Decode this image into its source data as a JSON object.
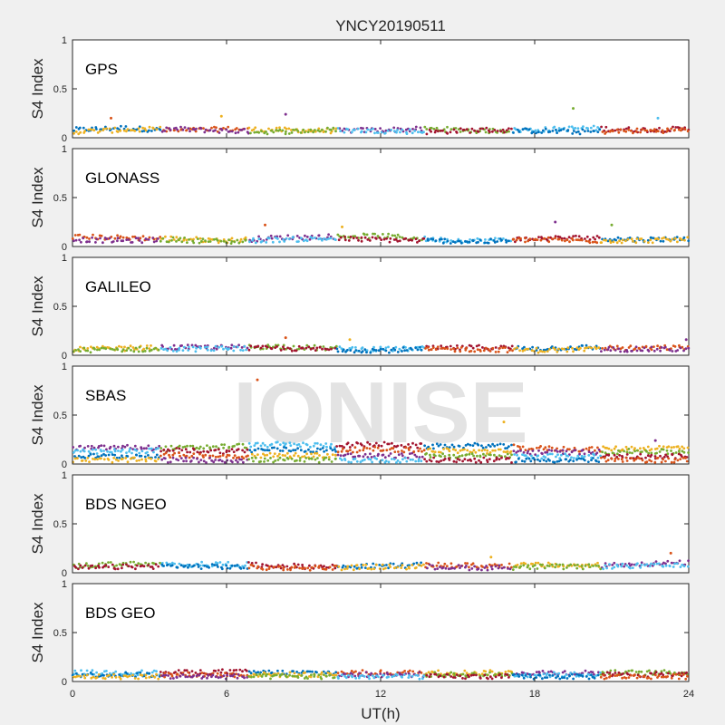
{
  "chart_data": {
    "type": "scatter",
    "title": "YNCY20190511",
    "xlabel": "UT(h)",
    "ylabel": "S4 Index",
    "xlim": [
      0,
      24
    ],
    "ylim": [
      0,
      1
    ],
    "xticks": [
      "0",
      "6",
      "12",
      "18",
      "24"
    ],
    "yticks": [
      "0",
      "0.5",
      "1"
    ],
    "grid": false,
    "watermark": "IONISE",
    "series_colors": [
      "#0072bd",
      "#d95319",
      "#edb120",
      "#7e2f8e",
      "#77ac30",
      "#4dbeee",
      "#a2142f"
    ],
    "panels": [
      {
        "label": "GPS",
        "series": [
          {
            "x": [
              0,
              2,
              4,
              6,
              8,
              10,
              12,
              14,
              16,
              18,
              20,
              22,
              24
            ],
            "y": [
              0.08,
              0.1,
              0.07,
              0.09,
              0.08,
              0.07,
              0.08,
              0.09,
              0.07,
              0.08,
              0.1,
              0.08,
              0.09
            ]
          },
          {
            "x": [
              0,
              2,
              4,
              6,
              8,
              10,
              12,
              14,
              16,
              18,
              20,
              22,
              24
            ],
            "y": [
              0.06,
              0.08,
              0.09,
              0.07,
              0.06,
              0.08,
              0.07,
              0.06,
              0.08,
              0.07,
              0.06,
              0.07,
              0.08
            ]
          }
        ],
        "outliers": [
          [
            1.5,
            0.2
          ],
          [
            5.8,
            0.22
          ],
          [
            8.3,
            0.24
          ],
          [
            19.5,
            0.3
          ],
          [
            22.8,
            0.2
          ]
        ]
      },
      {
        "label": "GLONASS",
        "series": [
          {
            "x": [
              0,
              2,
              4,
              6,
              8,
              10,
              12,
              14,
              16,
              18,
              20,
              22,
              24
            ],
            "y": [
              0.1,
              0.09,
              0.08,
              0.06,
              0.09,
              0.1,
              0.11,
              0.07,
              0.06,
              0.08,
              0.09,
              0.07,
              0.08
            ]
          },
          {
            "x": [
              0,
              2,
              4,
              6,
              8,
              10,
              12,
              14,
              16,
              18,
              20,
              22,
              24
            ],
            "y": [
              0.07,
              0.06,
              0.07,
              0.05,
              0.07,
              0.08,
              0.07,
              0.06,
              0.05,
              0.07,
              0.06,
              0.06,
              0.07
            ]
          }
        ],
        "outliers": [
          [
            7.5,
            0.22
          ],
          [
            10.5,
            0.2
          ],
          [
            18.8,
            0.25
          ],
          [
            21.0,
            0.22
          ]
        ]
      },
      {
        "label": "GALILEO",
        "series": [
          {
            "x": [
              0,
              2,
              4,
              6,
              8,
              10,
              12,
              14,
              16,
              18,
              20,
              22,
              24
            ],
            "y": [
              0.06,
              0.07,
              0.08,
              0.08,
              0.09,
              0.07,
              0.06,
              0.07,
              0.08,
              0.07,
              0.08,
              0.07,
              0.08
            ]
          },
          {
            "x": [
              0,
              2,
              4,
              6,
              8,
              10,
              12,
              14,
              16,
              18,
              20,
              22,
              24
            ],
            "y": [
              0.05,
              0.06,
              0.06,
              0.07,
              0.07,
              0.06,
              0.05,
              0.06,
              0.06,
              0.05,
              0.06,
              0.06,
              0.06
            ]
          }
        ],
        "outliers": [
          [
            8.3,
            0.18
          ],
          [
            10.8,
            0.16
          ],
          [
            23.9,
            0.16
          ]
        ]
      },
      {
        "label": "SBAS",
        "series": [
          {
            "x": [
              0,
              2,
              4,
              6,
              8,
              10,
              12,
              14,
              16,
              18,
              20,
              22,
              24
            ],
            "y": [
              0.16,
              0.17,
              0.16,
              0.18,
              0.2,
              0.19,
              0.2,
              0.18,
              0.19,
              0.16,
              0.15,
              0.16,
              0.17
            ]
          },
          {
            "x": [
              0,
              2,
              4,
              6,
              8,
              10,
              12,
              14,
              16,
              18,
              20,
              22,
              24
            ],
            "y": [
              0.12,
              0.13,
              0.14,
              0.13,
              0.15,
              0.14,
              0.15,
              0.14,
              0.13,
              0.12,
              0.12,
              0.13,
              0.12
            ]
          },
          {
            "x": [
              0,
              2,
              4,
              6,
              8,
              10,
              12,
              14,
              16,
              18,
              20,
              22,
              24
            ],
            "y": [
              0.08,
              0.08,
              0.09,
              0.08,
              0.09,
              0.09,
              0.08,
              0.09,
              0.08,
              0.08,
              0.08,
              0.08,
              0.08
            ]
          },
          {
            "x": [
              0,
              2,
              4,
              6,
              8,
              10,
              12,
              14,
              16,
              18,
              20,
              22,
              24
            ],
            "y": [
              0.04,
              0.04,
              0.04,
              0.04,
              0.04,
              0.04,
              0.04,
              0.04,
              0.04,
              0.04,
              0.04,
              0.04,
              0.04
            ]
          }
        ],
        "outliers": [
          [
            7.2,
            0.86
          ],
          [
            16.8,
            0.43
          ],
          [
            22.7,
            0.24
          ]
        ]
      },
      {
        "label": "BDS NGEO",
        "series": [
          {
            "x": [
              0,
              2,
              4,
              6,
              8,
              10,
              12,
              14,
              16,
              18,
              20,
              22,
              24
            ],
            "y": [
              0.07,
              0.09,
              0.08,
              0.09,
              0.07,
              0.06,
              0.07,
              0.08,
              0.07,
              0.08,
              0.07,
              0.09,
              0.1
            ]
          },
          {
            "x": [
              0,
              2,
              4,
              6,
              8,
              10,
              12,
              14,
              16,
              18,
              20,
              22,
              24
            ],
            "y": [
              0.05,
              0.06,
              0.07,
              0.06,
              0.05,
              0.05,
              0.06,
              0.06,
              0.05,
              0.06,
              0.06,
              0.07,
              0.07
            ]
          }
        ],
        "outliers": [
          [
            23.3,
            0.2
          ],
          [
            16.3,
            0.16
          ]
        ]
      },
      {
        "label": "BDS GEO",
        "series": [
          {
            "x": [
              0,
              2,
              4,
              6,
              8,
              10,
              12,
              14,
              16,
              18,
              20,
              22,
              24
            ],
            "y": [
              0.09,
              0.09,
              0.09,
              0.1,
              0.09,
              0.09,
              0.09,
              0.09,
              0.09,
              0.09,
              0.09,
              0.09,
              0.09
            ]
          },
          {
            "x": [
              0,
              2,
              4,
              6,
              8,
              10,
              12,
              14,
              16,
              18,
              20,
              22,
              24
            ],
            "y": [
              0.07,
              0.07,
              0.07,
              0.07,
              0.07,
              0.07,
              0.07,
              0.07,
              0.07,
              0.07,
              0.07,
              0.07,
              0.07
            ]
          },
          {
            "x": [
              0,
              2,
              4,
              6,
              8,
              10,
              12,
              14,
              16,
              18,
              20,
              22,
              24
            ],
            "y": [
              0.05,
              0.05,
              0.05,
              0.05,
              0.05,
              0.05,
              0.05,
              0.05,
              0.05,
              0.05,
              0.05,
              0.05,
              0.05
            ]
          }
        ],
        "outliers": []
      }
    ]
  }
}
